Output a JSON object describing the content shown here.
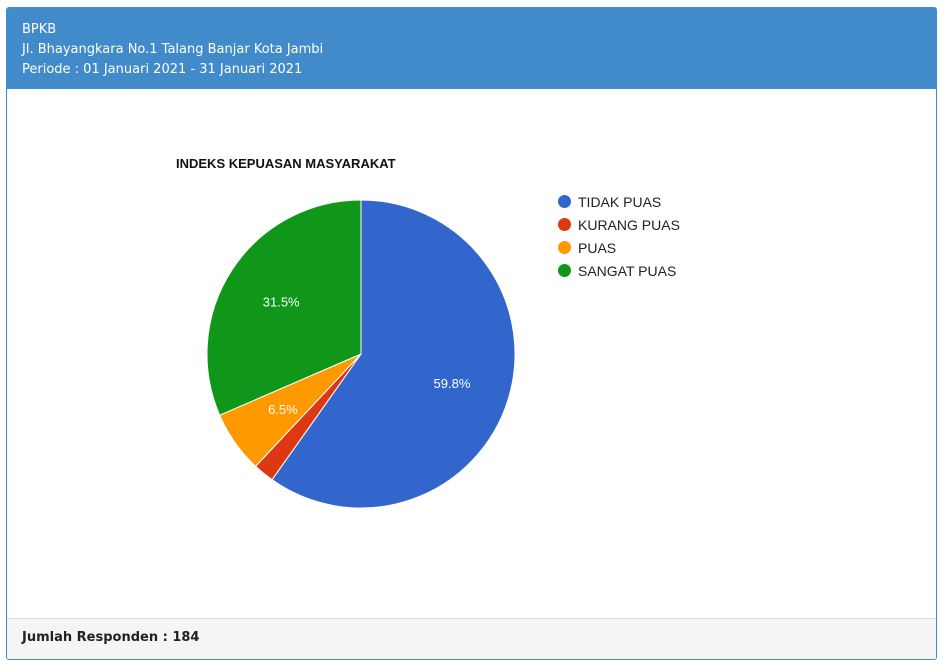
{
  "header": {
    "org": "BPKB",
    "address": "Jl. Bhayangkara No.1 Talang Banjar Kota Jambi",
    "period": "Periode : 01 Januari 2021 - 31 Januari 2021"
  },
  "footer": {
    "respondents": "Jumlah Responden : 184"
  },
  "colors": {
    "header_bg": "#428bca",
    "tidak_puas": "#3366cc",
    "kurang_puas": "#dc3912",
    "puas": "#ff9900",
    "sangat_puas": "#109618"
  },
  "chart_data": {
    "type": "pie",
    "title": "INDEKS KEPUASAN MASYARAKAT",
    "legend_position": "right",
    "series": [
      {
        "name": "TIDAK PUAS",
        "value": 59.8,
        "label": "59.8%",
        "color": "#3366cc"
      },
      {
        "name": "KURANG PUAS",
        "value": 2.2,
        "label": "",
        "color": "#dc3912"
      },
      {
        "name": "PUAS",
        "value": 6.5,
        "label": "6.5%",
        "color": "#ff9900"
      },
      {
        "name": "SANGAT PUAS",
        "value": 31.5,
        "label": "31.5%",
        "color": "#109618"
      }
    ]
  }
}
